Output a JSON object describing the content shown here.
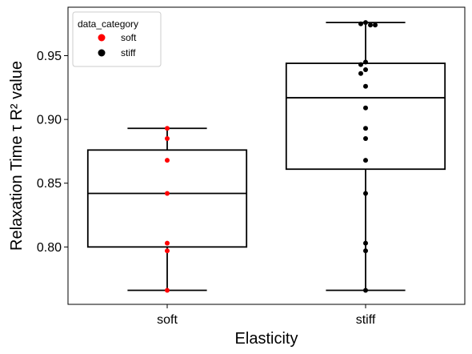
{
  "chart_data": {
    "type": "box",
    "xlabel": "Elasticity",
    "ylabel": "Relaxation Time τ R² value",
    "categories": [
      "soft",
      "stiff"
    ],
    "ylim": [
      0.755,
      0.988
    ],
    "yticks": [
      0.8,
      0.85,
      0.9,
      0.95
    ],
    "ytick_labels": [
      "0.80",
      "0.85",
      "0.90",
      "0.95"
    ],
    "boxes": [
      {
        "category": "soft",
        "whisker_low": 0.766,
        "q1": 0.8,
        "median": 0.842,
        "q3": 0.876,
        "whisker_high": 0.893
      },
      {
        "category": "stiff",
        "whisker_low": 0.766,
        "q1": 0.861,
        "median": 0.917,
        "q3": 0.944,
        "whisker_high": 0.976
      }
    ],
    "points": [
      {
        "category": "soft",
        "series": "soft",
        "values": [
          0.893,
          0.885,
          0.868,
          0.842,
          0.803,
          0.797,
          0.766
        ]
      },
      {
        "category": "stiff",
        "series": "stiff",
        "values": [
          0.976,
          0.975,
          0.974,
          0.974,
          0.945,
          0.943,
          0.939,
          0.936,
          0.926,
          0.909,
          0.893,
          0.885,
          0.868,
          0.842,
          0.803,
          0.797,
          0.766
        ]
      }
    ],
    "legend": {
      "title": "data_category",
      "placement": "top-left",
      "entries": [
        {
          "label": "soft",
          "color": "#ff0000"
        },
        {
          "label": "stiff",
          "color": "#000000"
        }
      ]
    },
    "grid": false
  }
}
